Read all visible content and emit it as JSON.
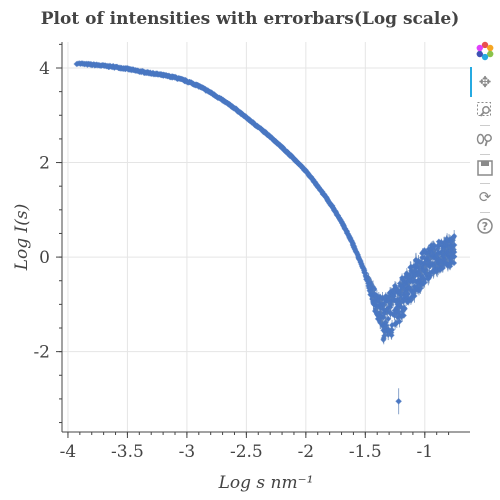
{
  "chart_data": {
    "type": "scatter",
    "title": "Plot of intensities with errorbars(Log scale)",
    "xlabel": "Log s nm⁻¹",
    "ylabel": "Log I(s)",
    "xlim": [
      -4.05,
      -0.62
    ],
    "ylim": [
      -3.7,
      4.55
    ],
    "x_ticks": [
      -4,
      -3.5,
      -3,
      -2.5,
      -2,
      -1.5,
      -1
    ],
    "x_tick_labels": [
      "-4",
      "-3.5",
      "-3",
      "-2.5",
      "-2",
      "-1.5",
      "-1"
    ],
    "y_ticks": [
      -2,
      0,
      2,
      4
    ],
    "y_tick_labels": [
      "-2",
      "0",
      "2",
      "4"
    ],
    "grid": true,
    "series": [
      {
        "marker": "diamond",
        "color": "#4a77c2",
        "curve": [
          [
            -3.93,
            4.1
          ],
          [
            -3.85,
            4.08
          ],
          [
            -3.75,
            4.06
          ],
          [
            -3.6,
            4.02
          ],
          [
            -3.5,
            3.98
          ],
          [
            -3.4,
            3.93
          ],
          [
            -3.25,
            3.87
          ],
          [
            -3.1,
            3.8
          ],
          [
            -3.0,
            3.72
          ],
          [
            -2.9,
            3.62
          ],
          [
            -2.8,
            3.48
          ],
          [
            -2.7,
            3.32
          ],
          [
            -2.6,
            3.15
          ],
          [
            -2.5,
            2.95
          ],
          [
            -2.4,
            2.75
          ],
          [
            -2.3,
            2.55
          ],
          [
            -2.2,
            2.32
          ],
          [
            -2.1,
            2.08
          ],
          [
            -2.0,
            1.82
          ],
          [
            -1.9,
            1.5
          ],
          [
            -1.8,
            1.15
          ],
          [
            -1.7,
            0.75
          ],
          [
            -1.6,
            0.25
          ],
          [
            -1.5,
            -0.35
          ],
          [
            -1.45,
            -0.7
          ],
          [
            -1.4,
            -1.05
          ],
          [
            -1.35,
            -1.3
          ],
          [
            -1.3,
            -1.25
          ],
          [
            -1.25,
            -1.05
          ],
          [
            -1.2,
            -0.9
          ],
          [
            -1.15,
            -0.7
          ],
          [
            -1.1,
            -0.5
          ],
          [
            -1.05,
            -0.35
          ],
          [
            -1.0,
            -0.2
          ],
          [
            -0.95,
            -0.1
          ],
          [
            -0.9,
            0.0
          ],
          [
            -0.85,
            0.05
          ],
          [
            -0.8,
            0.1
          ],
          [
            -0.75,
            0.15
          ]
        ],
        "spread": [
          [
            -1.5,
            0.05
          ],
          [
            -1.4,
            0.25
          ],
          [
            -1.35,
            0.45
          ],
          [
            -1.3,
            0.5
          ],
          [
            -1.2,
            0.45
          ],
          [
            -1.1,
            0.4
          ],
          [
            -1.0,
            0.35
          ],
          [
            -0.75,
            0.3
          ]
        ],
        "outliers": [
          [
            -1.22,
            -3.05
          ]
        ]
      }
    ]
  },
  "toolbar": {
    "logo_icon": "bokeh-logo-icon",
    "tools": [
      "pan-icon",
      "box-zoom-icon",
      "wheel-zoom-icon",
      "save-icon",
      "reset-icon",
      "help-icon"
    ]
  }
}
